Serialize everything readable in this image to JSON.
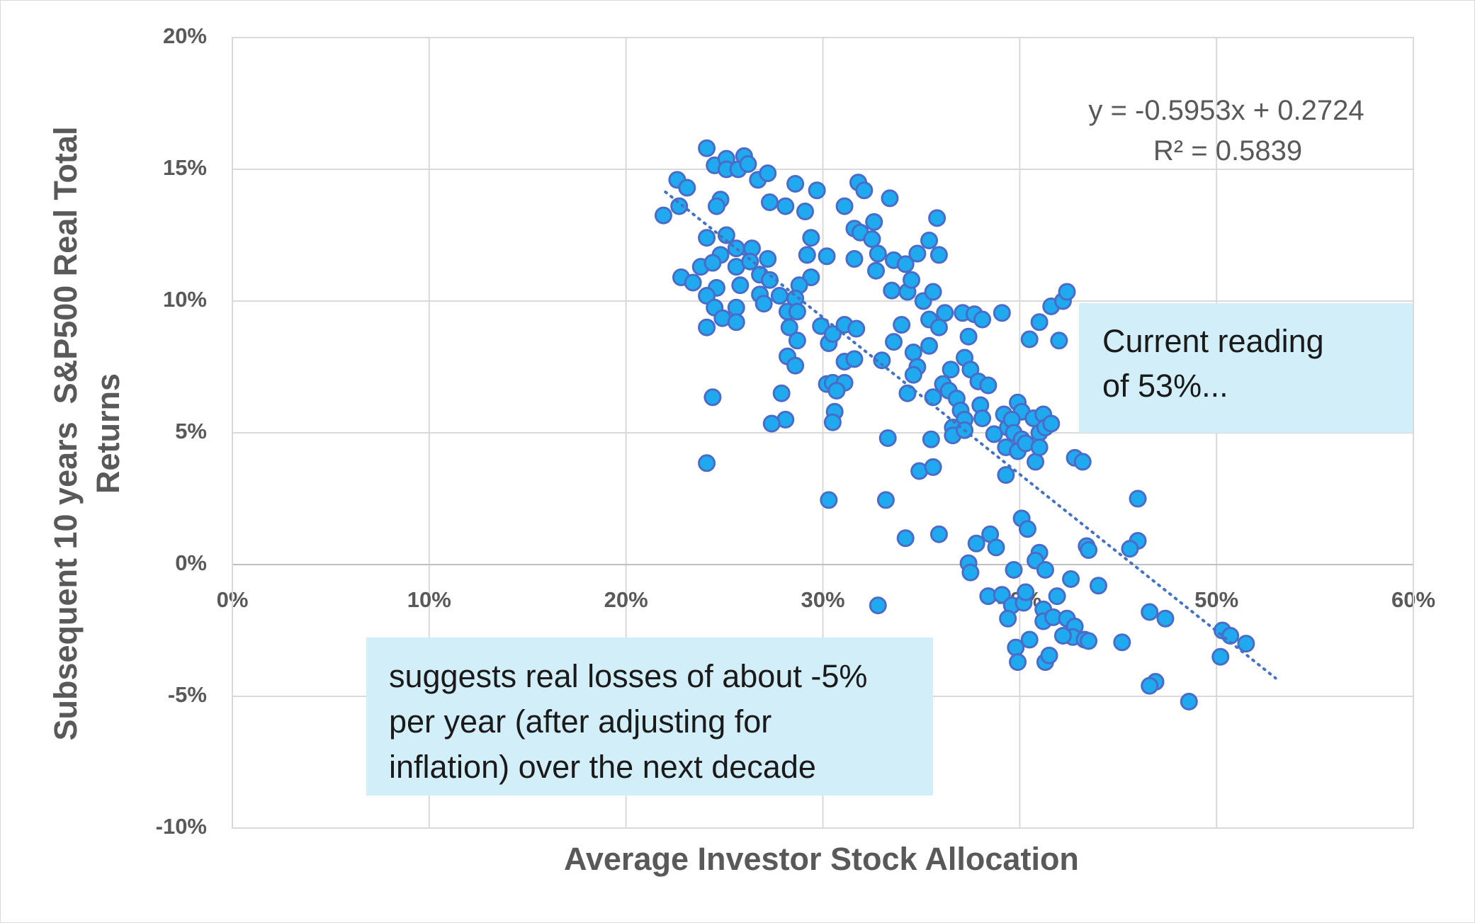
{
  "chart_data": {
    "type": "scatter",
    "xlabel": "Average Investor Stock Allocation",
    "ylabel": [
      "Subsequent 10 years  S&P500 Real Total",
      "Returns"
    ],
    "xlim": [
      0,
      60
    ],
    "ylim": [
      -10,
      20
    ],
    "xticks": [
      {
        "value": 0,
        "label": "0%"
      },
      {
        "value": 10,
        "label": "10%"
      },
      {
        "value": 20,
        "label": "20%"
      },
      {
        "value": 30,
        "label": "30%"
      },
      {
        "value": 40,
        "label": "40%"
      },
      {
        "value": 50,
        "label": "50%"
      },
      {
        "value": 60,
        "label": "60%"
      }
    ],
    "yticks": [
      {
        "value": -10,
        "label": "-10%"
      },
      {
        "value": -5,
        "label": "-5%"
      },
      {
        "value": 0,
        "label": "0%"
      },
      {
        "value": 5,
        "label": "5%"
      },
      {
        "value": 10,
        "label": "10%"
      },
      {
        "value": 15,
        "label": "15%"
      },
      {
        "value": 20,
        "label": "20%"
      }
    ],
    "grid": true,
    "color": "#1faaf0",
    "edgecolor": "#4a6cc8",
    "x": [
      21.9,
      22.6,
      22.7,
      23.1,
      22.8,
      23.4,
      23.8,
      24.1,
      24.5,
      25.1,
      25.1,
      25.7,
      26.0,
      26.2,
      26.7,
      27.2,
      24.8,
      24.6,
      24.1,
      25.1,
      25.6,
      24.8,
      24.4,
      25.6,
      24.6,
      24.1,
      24.5,
      24.1,
      24.9,
      25.6,
      25.6,
      25.8,
      24.4,
      24.1,
      26.4,
      26.3,
      27.2,
      26.8,
      27.3,
      26.8,
      27.0,
      27.8,
      27.3,
      28.1,
      28.6,
      29.1,
      29.7,
      29.4,
      29.2,
      29.4,
      28.8,
      28.6,
      28.2,
      28.7,
      28.3,
      28.7,
      28.2,
      28.6,
      27.9,
      28.1,
      27.4,
      30.2,
      29.9,
      30.3,
      30.5,
      31.1,
      31.7,
      31.1,
      31.6,
      30.2,
      30.5,
      31.1,
      30.7,
      30.6,
      30.5,
      30.3,
      31.1,
      31.8,
      32.1,
      31.6,
      31.9,
      32.6,
      32.5,
      32.8,
      32.7,
      33.4,
      33.6,
      34.2,
      31.6,
      33.5,
      34.3,
      34.5,
      34.8,
      35.4,
      35.8,
      35.9,
      35.1,
      35.6,
      35.4,
      35.9,
      35.4,
      34.0,
      33.6,
      34.6,
      34.8,
      34.6,
      33.0,
      34.3,
      33.3,
      33.2,
      34.2,
      35.9,
      32.8,
      34.9,
      35.6,
      35.5,
      35.6,
      36.1,
      36.4,
      36.5,
      36.2,
      37.1,
      37.7,
      38.1,
      39.1,
      37.4,
      37.2,
      37.5,
      37.9,
      38.4,
      36.8,
      37.0,
      37.2,
      36.6,
      36.6,
      37.2,
      38.0,
      38.1,
      38.7,
      39.2,
      39.4,
      39.3,
      39.3,
      39.9,
      40.1,
      39.6,
      39.7,
      40.1,
      39.9,
      40.3,
      40.7,
      41.0,
      41.2,
      41.3,
      41.6,
      40.8,
      41.0,
      40.5,
      41.0,
      41.6,
      42.0,
      42.2,
      42.4,
      42.8,
      43.2,
      40.1,
      40.4,
      46.0,
      46.0,
      45.6,
      37.8,
      38.5,
      38.8,
      37.4,
      37.5,
      39.7,
      41.0,
      40.8,
      41.3,
      43.4,
      43.5,
      44.0,
      42.6,
      38.4,
      39.1,
      39.6,
      39.4,
      40.2,
      40.3,
      41.2,
      41.2,
      41.9,
      41.7,
      42.4,
      42.8,
      42.7,
      43.3,
      43.5,
      42.2,
      39.8,
      40.5,
      39.9,
      41.3,
      41.5,
      45.2,
      46.6,
      47.4,
      46.9,
      46.6,
      48.6,
      50.3,
      50.7,
      51.5,
      50.2
    ],
    "values": [
      13.25,
      14.6,
      13.6,
      14.3,
      10.9,
      10.7,
      11.3,
      15.8,
      15.15,
      15.4,
      15.0,
      15.0,
      15.5,
      15.2,
      14.6,
      14.85,
      13.85,
      13.6,
      12.4,
      12.5,
      12.0,
      11.75,
      11.45,
      11.3,
      10.5,
      10.2,
      9.75,
      9.0,
      9.35,
      9.75,
      9.2,
      10.6,
      6.35,
      3.85,
      12.0,
      11.5,
      11.6,
      11.0,
      10.8,
      10.25,
      9.9,
      10.2,
      13.75,
      13.6,
      14.45,
      13.4,
      14.2,
      12.4,
      11.75,
      10.9,
      10.6,
      10.1,
      9.6,
      9.6,
      9.0,
      8.5,
      7.9,
      7.55,
      6.5,
      5.5,
      5.35,
      11.7,
      9.05,
      8.4,
      8.75,
      9.1,
      8.95,
      7.7,
      7.8,
      6.85,
      6.9,
      6.9,
      6.6,
      5.8,
      5.4,
      2.45,
      13.6,
      14.5,
      14.2,
      12.75,
      12.6,
      13.0,
      12.35,
      11.8,
      11.15,
      13.9,
      11.55,
      11.4,
      11.6,
      10.4,
      10.35,
      10.8,
      11.8,
      12.3,
      13.15,
      11.75,
      10.0,
      10.35,
      9.3,
      9.0,
      8.3,
      9.1,
      8.45,
      8.05,
      7.5,
      7.2,
      7.75,
      6.5,
      4.8,
      2.45,
      1.0,
      1.15,
      -1.55,
      3.55,
      3.7,
      4.75,
      6.35,
      6.85,
      6.6,
      7.4,
      9.55,
      9.55,
      9.5,
      9.3,
      9.55,
      8.65,
      7.85,
      7.4,
      6.95,
      6.8,
      6.3,
      5.85,
      5.5,
      5.2,
      4.9,
      5.1,
      6.05,
      5.55,
      4.95,
      5.7,
      5.2,
      4.45,
      3.4,
      6.15,
      5.8,
      5.5,
      5.0,
      4.75,
      4.3,
      4.6,
      5.55,
      5.0,
      5.7,
      5.2,
      5.35,
      3.9,
      4.45,
      8.55,
      9.2,
      9.8,
      8.5,
      10.0,
      10.35,
      4.05,
      3.9,
      1.75,
      1.35,
      2.5,
      0.9,
      0.6,
      0.8,
      1.15,
      0.65,
      0.05,
      -0.3,
      -0.2,
      0.45,
      0.15,
      -0.2,
      0.7,
      0.55,
      -0.8,
      -0.55,
      -1.2,
      -1.15,
      -1.55,
      -2.05,
      -1.45,
      -1.05,
      -1.7,
      -2.15,
      -1.2,
      -2.0,
      -2.05,
      -2.35,
      -2.75,
      -2.85,
      -2.9,
      -2.7,
      -3.15,
      -2.85,
      -3.7,
      -3.7,
      -3.45,
      -2.95,
      -1.8,
      -2.05,
      -4.45,
      -4.6,
      -5.2,
      -2.5,
      -2.7,
      -3.0,
      -3.5
    ],
    "trendline": {
      "x": [
        22,
        53
      ],
      "values": [
        14.14,
        -4.31
      ],
      "color": "#4472c4"
    },
    "equation": "y = -0.5953x + 0.2724",
    "r_squared": "R² = 0.5839",
    "annotations": [
      {
        "lines": [
          "Current reading",
          "of 53%..."
        ]
      },
      {
        "lines": [
          "suggests real losses of about -5%",
          "per year (after adjusting for",
          "inflation) over the next decade"
        ]
      }
    ]
  }
}
